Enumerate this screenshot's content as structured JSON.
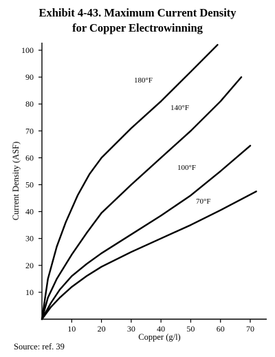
{
  "chart_data": {
    "type": "line",
    "title_line1": "Exhibit 4-43. Maximum Current Density",
    "title_line2": "for Copper Electrowinning",
    "xlabel": "Copper (g/l)",
    "ylabel": "Current Density (ASF)",
    "xlim": [
      0,
      75
    ],
    "ylim": [
      0,
      105
    ],
    "xticks": [
      10,
      20,
      30,
      40,
      50,
      60,
      70
    ],
    "yticks": [
      10,
      20,
      30,
      40,
      50,
      60,
      70,
      80,
      90,
      100
    ],
    "series": [
      {
        "name": "180°F",
        "x": [
          0,
          2,
          5,
          8,
          12,
          16,
          20,
          30,
          40,
          50,
          59
        ],
        "y": [
          0,
          15,
          27,
          36,
          46,
          54,
          60,
          71,
          81,
          92,
          102
        ]
      },
      {
        "name": "140°F",
        "x": [
          0,
          2,
          5,
          10,
          15,
          20,
          30,
          40,
          50,
          60,
          67
        ],
        "y": [
          0,
          8,
          15,
          24,
          32,
          39.5,
          50,
          60,
          70,
          81,
          90
        ]
      },
      {
        "name": "100°F",
        "x": [
          0,
          3,
          6,
          10,
          15,
          20,
          30,
          40,
          50,
          60,
          70
        ],
        "y": [
          0,
          6,
          11,
          16,
          20.5,
          24.5,
          31.5,
          38.5,
          46,
          55,
          64.5
        ]
      },
      {
        "name": "70°F",
        "x": [
          0,
          3,
          6,
          10,
          15,
          20,
          30,
          40,
          50,
          60,
          72
        ],
        "y": [
          0,
          4.5,
          8,
          12,
          16,
          19.5,
          25,
          30,
          35,
          40.5,
          47.5
        ]
      }
    ]
  },
  "source": "Source: ref. 39"
}
